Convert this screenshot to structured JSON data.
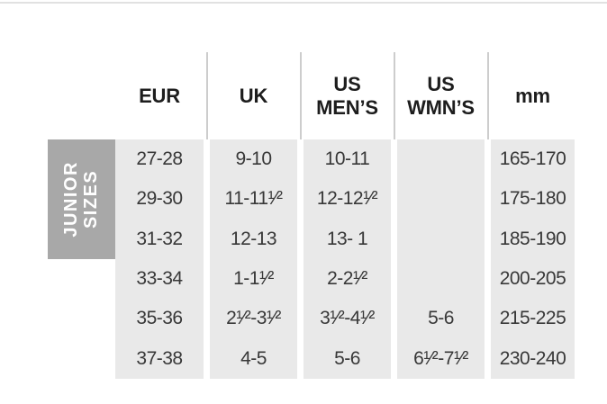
{
  "chart_data": {
    "type": "table",
    "row_group_label": "JUNIOR SIZES",
    "columns": [
      "EUR",
      "UK",
      "US MEN’S",
      "US WMN’S",
      "mm"
    ],
    "rows": [
      [
        "27-28",
        "9-10",
        "10-11",
        "",
        "165-170"
      ],
      [
        "29-30",
        "11-11¹⁄²",
        "12-12¹⁄²",
        "",
        "175-180"
      ],
      [
        "31-32",
        "12-13",
        "13- 1",
        "",
        "185-190"
      ],
      [
        "33-34",
        "1-1¹⁄²",
        "2-2¹⁄²",
        "",
        "200-205"
      ],
      [
        "35-36",
        "2¹⁄²-3¹⁄²",
        "3¹⁄²-4¹⁄²",
        "5-6",
        "215-225"
      ],
      [
        "37-38",
        "4-5",
        "5-6",
        "6¹⁄²-7¹⁄²",
        "230-240"
      ]
    ]
  },
  "table_label": {
    "line1": "JUNIOR",
    "line2": "SIZES"
  },
  "colors": {
    "top_rule": "#e1e1e1",
    "divider": "#cdcdcd",
    "cell_bg": "#e9e9e9",
    "label_bg": "#a8a8a8",
    "label_text": "#ffffff",
    "header_text": "#1d1d1d",
    "body_text": "#383838"
  }
}
